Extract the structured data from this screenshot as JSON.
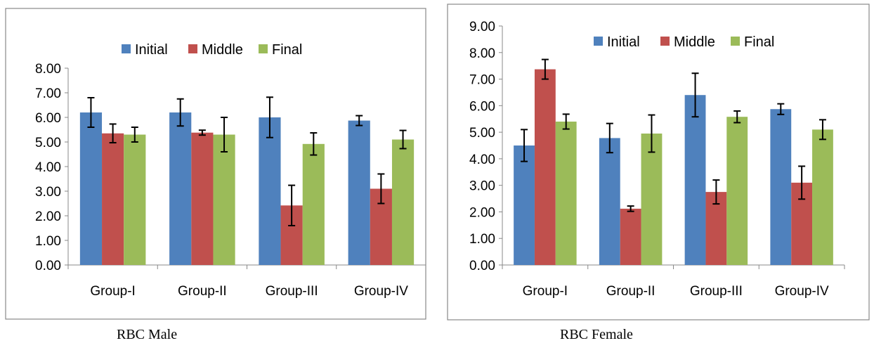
{
  "charts": [
    {
      "caption": "RBC Male",
      "chart_data": {
        "type": "bar",
        "categories": [
          "Group-I",
          "Group-II",
          "Group-III",
          "Group-IV"
        ],
        "series": [
          {
            "name": "Initial",
            "color": "#4F81BD",
            "values": [
              6.2,
              6.2,
              6.0,
              5.87
            ],
            "errors": [
              0.6,
              0.55,
              0.82,
              0.2
            ]
          },
          {
            "name": "Middle",
            "color": "#C0504D",
            "values": [
              5.35,
              5.38,
              2.42,
              3.1
            ],
            "errors": [
              0.38,
              0.1,
              0.82,
              0.6
            ]
          },
          {
            "name": "Final",
            "color": "#9BBB59",
            "values": [
              5.3,
              5.3,
              4.92,
              5.1
            ],
            "errors": [
              0.3,
              0.7,
              0.45,
              0.37
            ]
          }
        ],
        "ylim": [
          0,
          8
        ],
        "yticks": [
          "0.00",
          "1.00",
          "2.00",
          "3.00",
          "4.00",
          "5.00",
          "6.00",
          "7.00",
          "8.00"
        ],
        "legend_position": "top",
        "grid": false
      }
    },
    {
      "caption": "RBC Female",
      "chart_data": {
        "type": "bar",
        "categories": [
          "Group-I",
          "Group-II",
          "Group-III",
          "Group-IV"
        ],
        "series": [
          {
            "name": "Initial",
            "color": "#4F81BD",
            "values": [
              4.5,
              4.78,
              6.4,
              5.87
            ],
            "errors": [
              0.6,
              0.55,
              0.82,
              0.2
            ]
          },
          {
            "name": "Middle",
            "color": "#C0504D",
            "values": [
              7.37,
              2.12,
              2.75,
              3.1
            ],
            "errors": [
              0.37,
              0.1,
              0.45,
              0.62
            ]
          },
          {
            "name": "Final",
            "color": "#9BBB59",
            "values": [
              5.4,
              4.95,
              5.58,
              5.1
            ],
            "errors": [
              0.28,
              0.7,
              0.22,
              0.37
            ]
          }
        ],
        "ylim": [
          0,
          9
        ],
        "yticks": [
          "0.00",
          "1.00",
          "2.00",
          "3.00",
          "4.00",
          "5.00",
          "6.00",
          "7.00",
          "8.00",
          "9.00"
        ],
        "legend_position": "top",
        "grid": false
      }
    }
  ]
}
